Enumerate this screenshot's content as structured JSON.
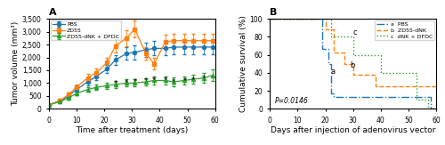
{
  "chart_data": [
    {
      "type": "line",
      "title": "A",
      "x_label": "Time after treatment (days)",
      "y_label": "Tumor volume (mm³)",
      "x": [
        0,
        4,
        7,
        10,
        14,
        17,
        21,
        24,
        28,
        31,
        35,
        38,
        42,
        45,
        49,
        52,
        56,
        59
      ],
      "xlim": [
        0,
        60
      ],
      "ylim": [
        0,
        3500
      ],
      "xticks": [
        0,
        10,
        20,
        30,
        40,
        50,
        60
      ],
      "yticks": [
        0,
        500,
        {
          "value": 1000,
          "label": "1,000"
        },
        {
          "value": 1500,
          "label": "1,500"
        },
        {
          "value": 2000,
          "label": "2,000"
        },
        {
          "value": 2500,
          "label": "2,500"
        },
        {
          "value": 3000,
          "label": "3,000"
        },
        {
          "value": 3500,
          "label": "3,500"
        }
      ],
      "legend": "upper left",
      "series": [
        {
          "name": "PBS",
          "marker": "circle",
          "line_style": "solid",
          "values": [
            150,
            300,
            500,
            750,
            1050,
            1250,
            1550,
            1900,
            2150,
            2200,
            2300,
            2350,
            2350,
            2400,
            2400,
            2400,
            2400,
            2400
          ],
          "errors": [
            30,
            50,
            70,
            100,
            130,
            150,
            170,
            200,
            250,
            270,
            280,
            280,
            280,
            280,
            280,
            280,
            280,
            280
          ]
        },
        {
          "name": "ZD55",
          "marker": "square",
          "line_style": "solid",
          "values": [
            150,
            320,
            550,
            850,
            1200,
            1400,
            1800,
            2450,
            2750,
            3100,
            2150,
            1750,
            2600,
            2650,
            2650,
            2650,
            2650,
            2650
          ],
          "errors": [
            30,
            55,
            75,
            110,
            150,
            160,
            200,
            260,
            300,
            320,
            250,
            220,
            280,
            280,
            280,
            280,
            280,
            280
          ]
        },
        {
          "name": "ZD55-dNK + DFDC",
          "marker": "triangle",
          "line_style": "solid",
          "values": [
            150,
            280,
            420,
            600,
            750,
            830,
            900,
            950,
            1000,
            1000,
            1050,
            1100,
            1100,
            1050,
            1100,
            1150,
            1200,
            1300
          ],
          "errors": [
            30,
            45,
            60,
            80,
            100,
            110,
            120,
            130,
            140,
            140,
            150,
            155,
            160,
            160,
            170,
            180,
            200,
            220
          ]
        }
      ],
      "annotations": [
        {
          "text": "*",
          "x": 24,
          "y": 800
        },
        {
          "text": "*",
          "x": 28,
          "y": 850
        },
        {
          "text": "*",
          "x": 31,
          "y": 860
        },
        {
          "text": "*",
          "x": 35,
          "y": 900
        },
        {
          "text": "*",
          "x": 38,
          "y": 940
        },
        {
          "text": "*",
          "x": 42,
          "y": 940
        },
        {
          "text": "*",
          "x": 45,
          "y": 880
        },
        {
          "text": "*",
          "x": 49,
          "y": 920
        },
        {
          "text": "*",
          "x": 52,
          "y": 960
        },
        {
          "text": "*",
          "x": 56,
          "y": 1000
        }
      ]
    },
    {
      "type": "line",
      "title": "B",
      "x_label": "Days after injection of adenovirus vector",
      "y_label": "Cumulative survival (%)",
      "xlim": [
        0,
        60
      ],
      "ylim": [
        0,
        100
      ],
      "xticks": [
        0,
        10,
        20,
        30,
        40,
        50,
        60
      ],
      "yticks": [
        0,
        20,
        40,
        60,
        80,
        100
      ],
      "legend": "upper right",
      "series": [
        {
          "name": "a  PBS",
          "line_style": "dashdot",
          "x": [
            0,
            19,
            19,
            21,
            21,
            22,
            22,
            23,
            23,
            58,
            58,
            60
          ],
          "values": [
            100,
            100,
            67,
            67,
            50,
            50,
            17,
            17,
            13,
            13,
            0,
            0
          ]
        },
        {
          "name": "b  ZD55-dNK",
          "line_style": "dashed",
          "x": [
            0,
            20,
            20,
            23,
            23,
            27,
            27,
            30,
            30,
            38,
            38,
            40,
            40,
            60
          ],
          "values": [
            100,
            100,
            88,
            88,
            63,
            63,
            50,
            50,
            38,
            38,
            25,
            25,
            25,
            25
          ]
        },
        {
          "name": "c  dNK + DFDC",
          "line_style": "dotted",
          "x": [
            0,
            22,
            22,
            30,
            30,
            40,
            40,
            53,
            53,
            57,
            57,
            60
          ],
          "values": [
            100,
            100,
            80,
            80,
            60,
            60,
            40,
            40,
            10,
            10,
            0,
            0
          ]
        }
      ],
      "annotations": [
        {
          "text": "P=0.0146"
        },
        {
          "text": "a",
          "x": 22,
          "y": 39
        },
        {
          "text": "b",
          "x": 29,
          "y": 46
        },
        {
          "text": "c",
          "x": 30,
          "y": 82
        }
      ]
    }
  ]
}
